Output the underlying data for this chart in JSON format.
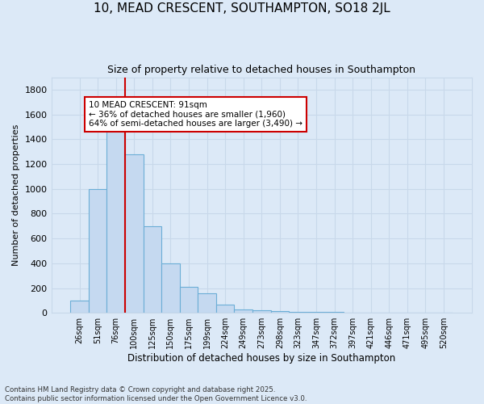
{
  "title1": "10, MEAD CRESCENT, SOUTHAMPTON, SO18 2JL",
  "title2": "Size of property relative to detached houses in Southampton",
  "xlabel": "Distribution of detached houses by size in Southampton",
  "ylabel": "Number of detached properties",
  "categories": [
    "26sqm",
    "51sqm",
    "76sqm",
    "100sqm",
    "125sqm",
    "150sqm",
    "175sqm",
    "199sqm",
    "224sqm",
    "249sqm",
    "273sqm",
    "298sqm",
    "323sqm",
    "347sqm",
    "372sqm",
    "397sqm",
    "421sqm",
    "446sqm",
    "471sqm",
    "495sqm",
    "520sqm"
  ],
  "values": [
    100,
    1000,
    1500,
    1280,
    700,
    400,
    210,
    160,
    65,
    30,
    20,
    15,
    10,
    5,
    5,
    0,
    0,
    0,
    0,
    0,
    0
  ],
  "bar_color": "#c5d9f0",
  "bar_edge_color": "#6baed6",
  "vline_x_index": 2.5,
  "annotation_text": "10 MEAD CRESCENT: 91sqm\n← 36% of detached houses are smaller (1,960)\n64% of semi-detached houses are larger (3,490) →",
  "annotation_box_color": "#ffffff",
  "annotation_box_edge_color": "#cc0000",
  "vline_color": "#cc0000",
  "grid_color": "#c8d8ea",
  "background_color": "#dce9f7",
  "footer_text": "Contains HM Land Registry data © Crown copyright and database right 2025.\nContains public sector information licensed under the Open Government Licence v3.0.",
  "ylim": [
    0,
    1900
  ],
  "yticks": [
    0,
    200,
    400,
    600,
    800,
    1000,
    1200,
    1400,
    1600,
    1800
  ]
}
